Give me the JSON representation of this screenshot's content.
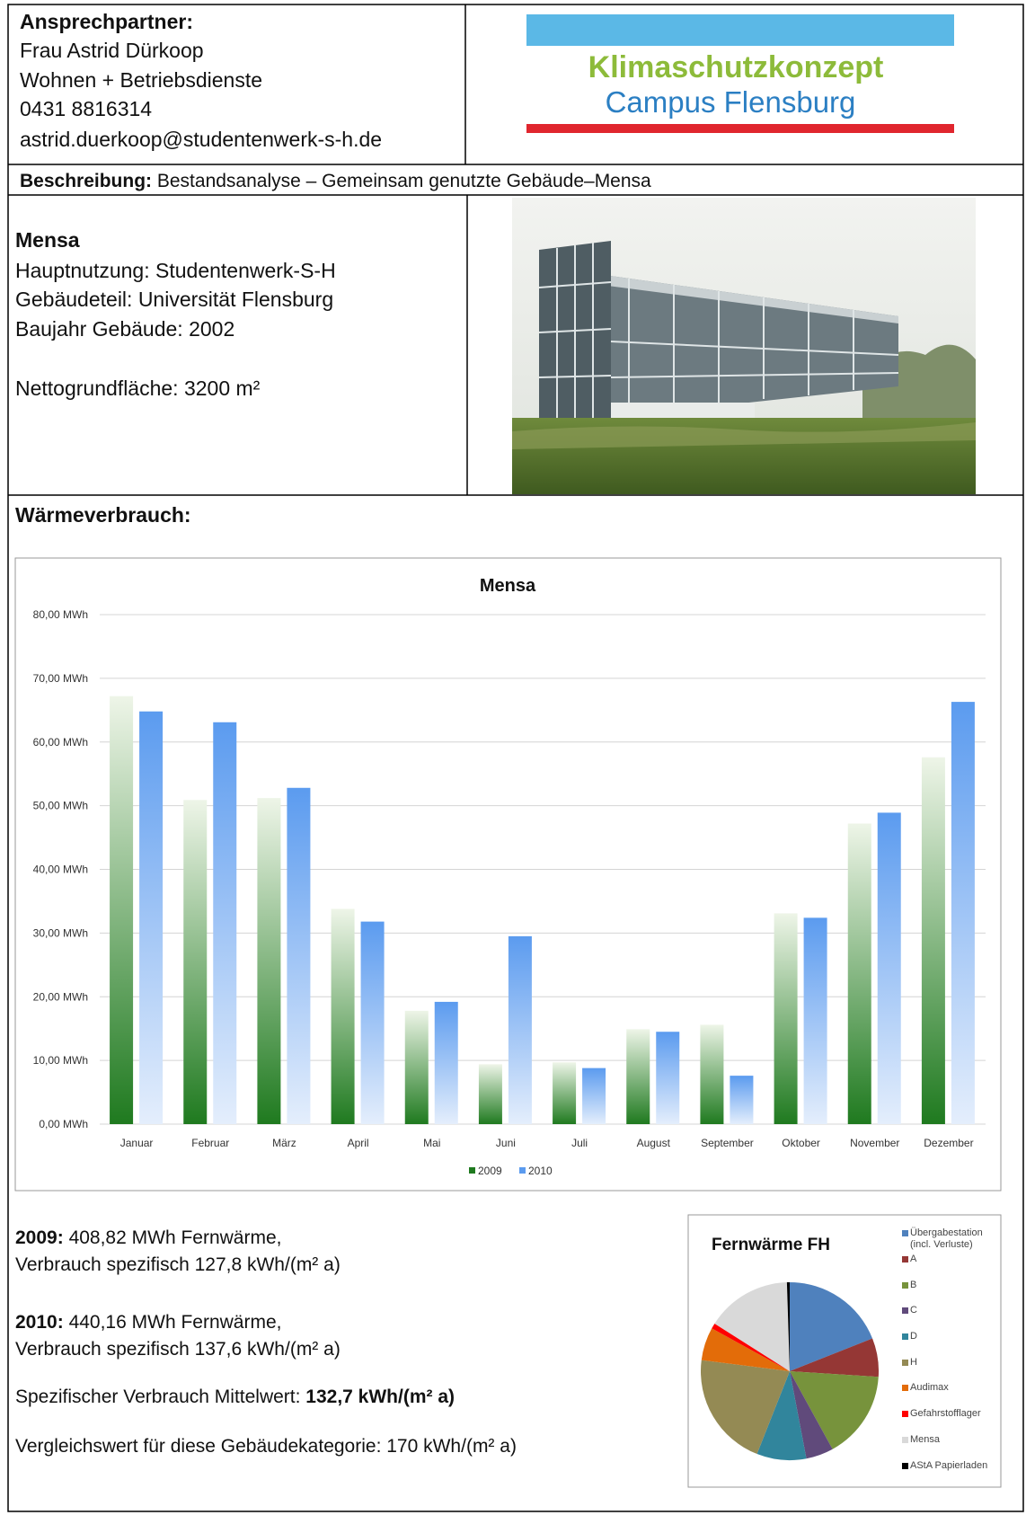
{
  "contact": {
    "heading": "Ansprechpartner:",
    "lines": [
      "Frau Astrid Dürkoop",
      "Wohnen + Betriebsdienste",
      "0431 8816314",
      "astrid.duerkoop@studentenwerk-s-h.de"
    ]
  },
  "logo": {
    "line1": "Klimaschutzkonzept",
    "line2": "Campus Flensburg"
  },
  "description": {
    "label": "Beschreibung:",
    "text": "Bestandsanalyse – Gemeinsam genutzte Gebäude–Mensa"
  },
  "building": {
    "name": "Mensa",
    "lines": [
      "Hauptnutzung: Studentenwerk-S-H",
      "Gebäudeteil: Universität Flensburg",
      "Baujahr Gebäude: 2002"
    ],
    "area": "Nettogrundfläche: 3200 m²"
  },
  "section_title": "Wärmeverbrauch:",
  "chart_data": [
    {
      "type": "bar",
      "title": "Mensa",
      "categories": [
        "Januar",
        "Februar",
        "März",
        "April",
        "Mai",
        "Juni",
        "Juli",
        "August",
        "September",
        "Oktober",
        "November",
        "Dezember"
      ],
      "series": [
        {
          "name": "2009",
          "color": "#1f7a1f",
          "values": [
            67.2,
            50.9,
            51.2,
            33.8,
            17.8,
            9.4,
            9.7,
            14.9,
            15.6,
            33.1,
            47.2,
            57.6
          ]
        },
        {
          "name": "2010",
          "color": "#5b9bef",
          "values": [
            64.8,
            63.1,
            52.8,
            31.8,
            19.2,
            29.5,
            8.8,
            14.5,
            7.6,
            32.4,
            48.9,
            66.3
          ]
        }
      ],
      "ylim": [
        0,
        80
      ],
      "yticks": [
        {
          "value": 0,
          "label": "0,00 MWh"
        },
        {
          "value": 10,
          "label": "10,00 MWh"
        },
        {
          "value": 20,
          "label": "20,00 MWh"
        },
        {
          "value": 30,
          "label": "30,00 MWh"
        },
        {
          "value": 40,
          "label": "40,00 MWh"
        },
        {
          "value": 50,
          "label": "50,00 MWh"
        },
        {
          "value": 60,
          "label": "60,00 MWh"
        },
        {
          "value": 70,
          "label": "70,00 MWh"
        },
        {
          "value": 80,
          "label": "80,00 MWh"
        }
      ],
      "grid": true,
      "legend": "bottom"
    },
    {
      "type": "pie",
      "title": "Fernwärme FH",
      "categories": [
        "Übergabestation (incl. Verluste)",
        "A",
        "B",
        "C",
        "D",
        "H",
        "Audimax",
        "Gefahrstofflager",
        "Mensa",
        "AStA Papierladen"
      ],
      "values": [
        19,
        7,
        16,
        5,
        9,
        21,
        6,
        1,
        15.5,
        0.5
      ],
      "colors": [
        "#4f81bd",
        "#953735",
        "#77933c",
        "#604a7b",
        "#31859c",
        "#948a54",
        "#e36c09",
        "#ff0000",
        "#d9d9d9",
        "#000000"
      ],
      "legend": "right"
    }
  ],
  "stats": [
    {
      "label": "2009:",
      "text": "408,82 MWh Fernwärme,",
      "line2": "Verbrauch spezifisch 127,8 kWh/(m² a)"
    },
    {
      "label": "2010:",
      "text": "440,16 MWh Fernwärme,",
      "line2": "Verbrauch spezifisch 137,6 kWh/(m² a)"
    },
    {
      "text": "Spezifischer Verbrauch Mittelwert: ",
      "bold": "132,7 kWh/(m² a)"
    },
    {
      "text": "Vergleichswert für diese Gebäudekategorie: 170 kWh/(m² a)"
    }
  ]
}
